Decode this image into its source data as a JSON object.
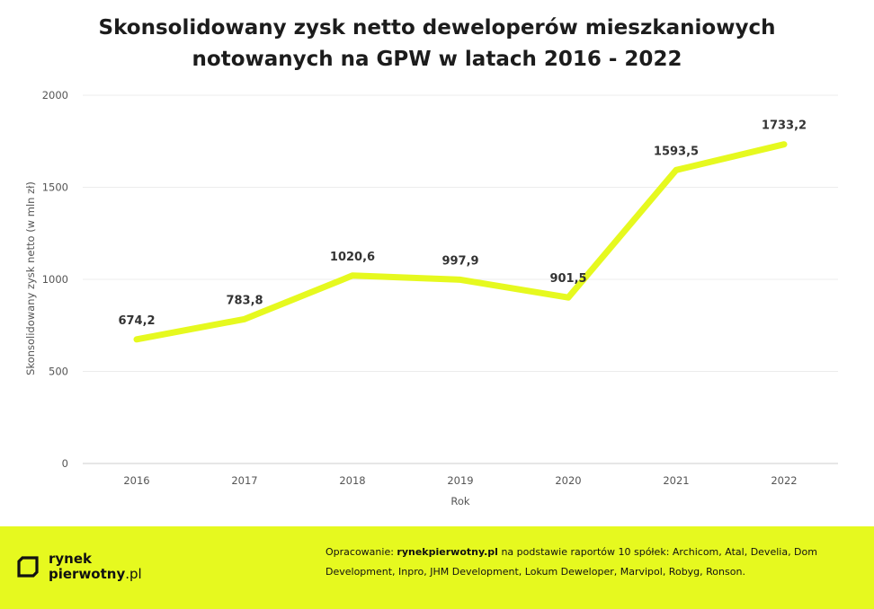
{
  "title_line1": "Skonsolidowany zysk netto deweloperów mieszkaniowych",
  "title_line2": "notowanych na GPW  w latach 2016 - 2022",
  "chart_data": {
    "type": "line",
    "title": "Skonsolidowany zysk netto deweloperów mieszkaniowych notowanych na GPW  w latach 2016 - 2022",
    "xlabel": "Rok",
    "ylabel": "Skonsolidowany zysk netto (w mln zł)",
    "categories": [
      "2016",
      "2017",
      "2018",
      "2019",
      "2020",
      "2021",
      "2022"
    ],
    "values": [
      674.2,
      783.8,
      1020.6,
      997.9,
      901.5,
      1593.5,
      1733.2
    ],
    "data_labels": [
      "674,2",
      "783,8",
      "1020,6",
      "997,9",
      "901,5",
      "1593,5",
      "1733,2"
    ],
    "y_ticks": [
      "0",
      "500",
      "1000",
      "1500",
      "2000"
    ],
    "ylim": [
      0,
      2000
    ],
    "grid": true,
    "legend": false,
    "line_color": "#e6f91f"
  },
  "footer": {
    "background": "#e6f91f",
    "logo_line1": "rynek",
    "logo_line2_bold": "pierwotny",
    "logo_line2_light": ".pl",
    "source_prefix": "Opracowanie: ",
    "source_bold": "rynekpierwotny.pl",
    "source_rest": " na podstawie raportów 10 spółek: Archicom, Atal, Develia, Dom Development, Inpro, JHM Development, Lokum Deweloper, Marvipol, Robyg, Ronson."
  }
}
